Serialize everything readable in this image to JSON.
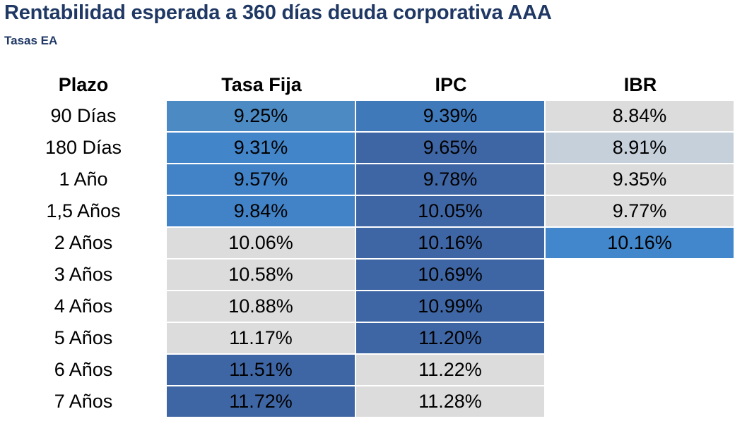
{
  "title": "Rentabilidad esperada a 360 días deuda corporativa AAA",
  "subtitle": "Tasas EA",
  "chart_data": {
    "type": "table",
    "title": "Rentabilidad esperada a 360 días deuda corporativa AAA",
    "subtitle": "Tasas EA",
    "columns": [
      "Plazo",
      "Tasa Fija",
      "IPC",
      "IBR"
    ],
    "rows": [
      {
        "plazo": "90 Días",
        "values": [
          "9.25%",
          "9.39%",
          "8.84%"
        ]
      },
      {
        "plazo": "180 Días",
        "values": [
          "9.31%",
          "9.65%",
          "8.91%"
        ]
      },
      {
        "plazo": "1 Año",
        "values": [
          "9.57%",
          "9.78%",
          "9.35%"
        ]
      },
      {
        "plazo": "1,5 Años",
        "values": [
          "9.84%",
          "10.05%",
          "9.77%"
        ]
      },
      {
        "plazo": "2 Años",
        "values": [
          "10.06%",
          "10.16%",
          "10.16%"
        ]
      },
      {
        "plazo": "3 Años",
        "values": [
          "10.58%",
          "10.69%",
          ""
        ]
      },
      {
        "plazo": "4 Años",
        "values": [
          "10.88%",
          "10.99%",
          ""
        ]
      },
      {
        "plazo": "5 Años",
        "values": [
          "11.17%",
          "11.20%",
          ""
        ]
      },
      {
        "plazo": "6 Años",
        "values": [
          "11.51%",
          "11.22%",
          ""
        ]
      },
      {
        "plazo": "7 Años",
        "values": [
          "11.72%",
          "11.28%",
          ""
        ]
      }
    ],
    "cell_colors": [
      [
        "#4c8ac4",
        "#4079ba",
        "#dcdcdc"
      ],
      [
        "#4285c9",
        "#3f66a4",
        "#c6d0db"
      ],
      [
        "#4283c7",
        "#3f66a4",
        "#dcdcdc"
      ],
      [
        "#4283c7",
        "#3f66a4",
        "#dcdcdc"
      ],
      [
        "#dcdcdc",
        "#3f66a4",
        "#4287cb"
      ],
      [
        "#dcdcdc",
        "#3f66a4",
        "#ffffff"
      ],
      [
        "#dcdcdc",
        "#3f66a4",
        "#ffffff"
      ],
      [
        "#dcdcdc",
        "#3f66a4",
        "#ffffff"
      ],
      [
        "#3f66a4",
        "#dcdcdc",
        "#ffffff"
      ],
      [
        "#3f66a4",
        "#dcdcdc",
        "#ffffff"
      ]
    ]
  }
}
